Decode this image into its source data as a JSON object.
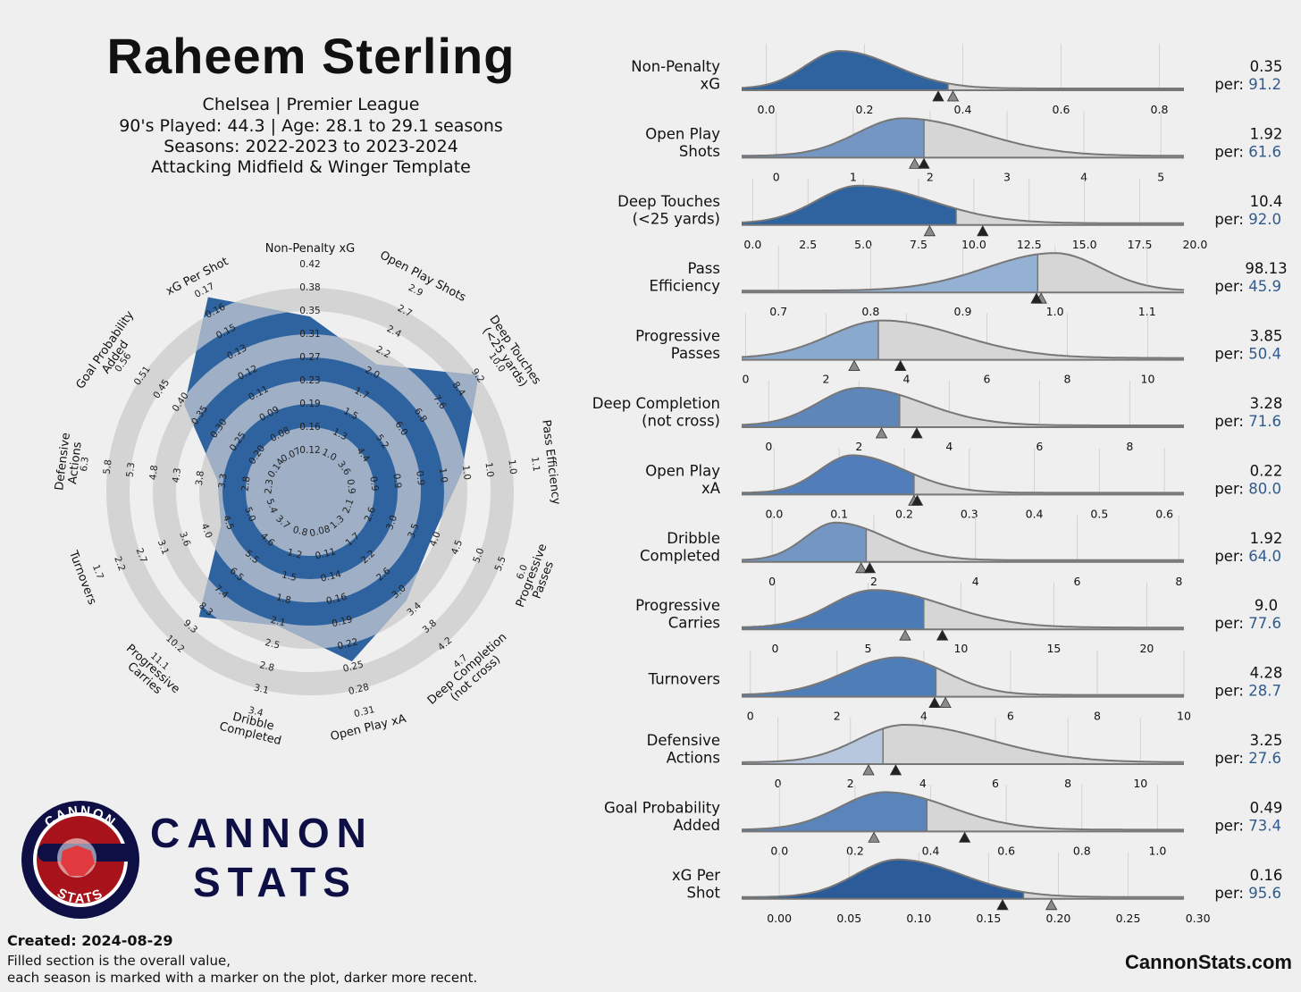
{
  "header": {
    "title": "Raheem Sterling",
    "line1": "Chelsea | Premier League",
    "line2": "90's Played: 44.3 | Age: 28.1 to 29.1 seasons",
    "line3": "Seasons: 2022-2023 to 2023-2024",
    "line4": "Attacking Midfield & Winger Template"
  },
  "brand": {
    "name1": "CANNON",
    "name2": "STATS",
    "badge_top": "CANNON",
    "badge_bottom": "STATS",
    "site": "CannonStats.com"
  },
  "footer": {
    "created": "Created: 2024-08-29",
    "note1": "Filled section is the overall value,",
    "note2": "each season is marked with a marker on the plot, darker more recent."
  },
  "colors": {
    "accent": "#2f63a0",
    "ring": "#d4d4d4",
    "curve_fill": "#d6d6d6",
    "curve_line": "#777777",
    "brand": "#0d0f45",
    "badge_red": "#a8121a"
  },
  "chart_data": [
    {
      "type": "radar",
      "axes": [
        {
          "label": "Non-Penalty xG",
          "ticks": [
            "0.12",
            "0.16",
            "0.19",
            "0.23",
            "0.27",
            "0.31",
            "0.35",
            "0.38",
            "0.42"
          ],
          "fill": 0.72
        },
        {
          "label": "Open Play Shots",
          "ticks": [
            "1.0",
            "1.3",
            "1.5",
            "1.7",
            "2.0",
            "2.2",
            "2.4",
            "2.7",
            "2.9"
          ],
          "fill": 0.55
        },
        {
          "label": "Deep Touches (<25 yards)",
          "ticks": [
            "3.6",
            "4.4",
            "5.2",
            "6.0",
            "6.8",
            "7.6",
            "8.4",
            "9.2",
            "10.0"
          ],
          "fill": 0.88
        },
        {
          "label": "Pass Efficiency",
          "ticks": [
            "0.9",
            "0.9",
            "0.9",
            "0.9",
            "1.0",
            "1.0",
            "1.0",
            "1.0",
            "1.1"
          ],
          "fill": 0.6
        },
        {
          "label": "Progressive Passes",
          "ticks": [
            "2.1",
            "2.6",
            "3.0",
            "3.5",
            "4.0",
            "4.5",
            "5.0",
            "5.5",
            "6.0"
          ],
          "fill": 0.48
        },
        {
          "label": "Deep Completion (not cross)",
          "ticks": [
            "1.3",
            "1.7",
            "2.2",
            "2.6",
            "3.0",
            "3.4",
            "3.8",
            "4.2",
            "4.7"
          ],
          "fill": 0.56
        },
        {
          "label": "Open Play xA",
          "ticks": [
            "0.08",
            "0.11",
            "0.14",
            "0.16",
            "0.19",
            "0.22",
            "0.25",
            "0.28",
            "0.31"
          ],
          "fill": 0.72
        },
        {
          "label": "Dribble Completed",
          "ticks": [
            "0.8",
            "1.2",
            "1.5",
            "1.8",
            "2.1",
            "2.5",
            "2.8",
            "3.1",
            "3.4"
          ],
          "fill": 0.52
        },
        {
          "label": "Progressive Carries",
          "ticks": [
            "3.7",
            "4.6",
            "5.5",
            "6.5",
            "7.4",
            "8.3",
            "9.3",
            "10.2",
            "11.1"
          ],
          "fill": 0.68
        },
        {
          "label": "Turnovers",
          "ticks": [
            "5.4",
            "5.0",
            "4.5",
            "4.0",
            "3.6",
            "3.1",
            "2.7",
            "2.2",
            "1.7"
          ],
          "fill": 0.29
        },
        {
          "label": "Defensive Actions",
          "ticks": [
            "2.3",
            "2.8",
            "3.3",
            "3.8",
            "4.3",
            "4.8",
            "5.3",
            "5.8",
            "6.3"
          ],
          "fill": 0.28
        },
        {
          "label": "Goal Probability Added",
          "ticks": [
            "0.14",
            "0.20",
            "0.25",
            "0.30",
            "0.35",
            "0.40",
            "0.45",
            "0.51",
            "0.56"
          ],
          "fill": 0.6
        },
        {
          "label": "xG Per Shot",
          "ticks": [
            "0.07",
            "0.08",
            "0.09",
            "0.11",
            "0.12",
            "0.13",
            "0.15",
            "0.16",
            "0.17"
          ],
          "fill": 0.96
        }
      ]
    },
    {
      "type": "distribution",
      "metrics": [
        {
          "label": [
            "Non-Penalty",
            "xG"
          ],
          "value": "0.35",
          "percentile": "91.2",
          "ticks": [
            "0.0",
            "0.2",
            "0.4",
            "0.6",
            "0.8"
          ],
          "tickvals": [
            0,
            0.2,
            0.4,
            0.6,
            0.8
          ],
          "xmin": -0.05,
          "xmax": 0.85,
          "mode": 0.15,
          "sdl": 0.07,
          "sdr": 0.11,
          "overall": 0.37,
          "markers": [
            0.38,
            0.35
          ],
          "shade": "#2f63a0"
        },
        {
          "label": [
            "Open Play",
            "Shots"
          ],
          "value": "1.92",
          "percentile": "61.6",
          "ticks": [
            "0",
            "1",
            "2",
            "3",
            "4",
            "5"
          ],
          "tickvals": [
            0,
            1,
            2,
            3,
            4,
            5
          ],
          "xmin": -0.45,
          "xmax": 5.3,
          "mode": 1.65,
          "sdl": 0.6,
          "sdr": 1.0,
          "overall": 1.92,
          "markers": [
            1.8,
            1.92
          ],
          "shade": "#7496c2"
        },
        {
          "label": [
            "Deep Touches",
            "(<25 yards)"
          ],
          "value": "10.4",
          "percentile": "92.0",
          "ticks": [
            "0.0",
            "2.5",
            "5.0",
            "7.5",
            "10.0",
            "12.5",
            "15.0",
            "17.5",
            "20.0"
          ],
          "tickvals": [
            0,
            2.5,
            5,
            7.5,
            10,
            12.5,
            15,
            17.5,
            20
          ],
          "xmin": -0.5,
          "xmax": 19.5,
          "mode": 4.8,
          "sdl": 1.9,
          "sdr": 3.2,
          "overall": 9.2,
          "markers": [
            8.0,
            10.4
          ],
          "shade": "#2f63a0"
        },
        {
          "label": [
            "Pass",
            "Efficiency"
          ],
          "value": "98.13",
          "percentile": "45.9",
          "ticks": [
            "0.7",
            "0.8",
            "0.9",
            "1.0",
            "1.1"
          ],
          "tickvals": [
            0.7,
            0.8,
            0.9,
            1.0,
            1.1
          ],
          "xmin": 0.66,
          "xmax": 1.14,
          "mode": 1.0,
          "sdl": 0.075,
          "sdr": 0.05,
          "overall": 0.9813,
          "markers": [
            0.985,
            0.98
          ],
          "shade": "#94b0d2"
        },
        {
          "label": [
            "Progressive",
            "Passes"
          ],
          "value": "3.85",
          "percentile": "50.4",
          "ticks": [
            "0",
            "2",
            "4",
            "6",
            "8",
            "10"
          ],
          "tickvals": [
            0,
            2,
            4,
            6,
            8,
            10
          ],
          "xmin": -0.1,
          "xmax": 10.9,
          "mode": 3.4,
          "sdl": 1.3,
          "sdr": 1.9,
          "overall": 3.3,
          "markers": [
            2.7,
            3.85
          ],
          "shade": "#8aa9cf"
        },
        {
          "label": [
            "Deep Completion",
            "(not cross)"
          ],
          "value": "3.28",
          "percentile": "71.6",
          "ticks": [
            "0",
            "2",
            "4",
            "6",
            "8"
          ],
          "tickvals": [
            0,
            2,
            4,
            6,
            8
          ],
          "xmin": -0.6,
          "xmax": 9.2,
          "mode": 2.0,
          "sdl": 0.9,
          "sdr": 1.4,
          "overall": 2.9,
          "markers": [
            2.5,
            3.28
          ],
          "shade": "#5e86b9"
        },
        {
          "label": [
            "Open Play",
            "xA"
          ],
          "value": "0.22",
          "percentile": "80.0",
          "ticks": [
            "0.0",
            "0.1",
            "0.2",
            "0.3",
            "0.4",
            "0.5",
            "0.6"
          ],
          "tickvals": [
            0,
            0.1,
            0.2,
            0.3,
            0.4,
            0.5,
            0.6
          ],
          "xmin": -0.05,
          "xmax": 0.63,
          "mode": 0.12,
          "sdl": 0.05,
          "sdr": 0.08,
          "overall": 0.215,
          "markers": [
            0.215,
            0.22
          ],
          "shade": "#527dbb"
        },
        {
          "label": [
            "Dribble",
            "Completed"
          ],
          "value": "1.92",
          "percentile": "64.0",
          "ticks": [
            "0",
            "2",
            "4",
            "6",
            "8"
          ],
          "tickvals": [
            0,
            2,
            4,
            6,
            8
          ],
          "xmin": -0.6,
          "xmax": 8.1,
          "mode": 1.25,
          "sdl": 0.6,
          "sdr": 1.0,
          "overall": 1.85,
          "markers": [
            1.75,
            1.92
          ],
          "shade": "#7496c2"
        },
        {
          "label": [
            "Progressive",
            "Carries"
          ],
          "value": "9.0",
          "percentile": "77.6",
          "ticks": [
            "0",
            "5",
            "10",
            "15",
            "20"
          ],
          "tickvals": [
            0,
            5,
            10,
            15,
            20
          ],
          "xmin": -1.8,
          "xmax": 22.0,
          "mode": 5.3,
          "sdl": 2.3,
          "sdr": 3.8,
          "overall": 8.0,
          "markers": [
            7.0,
            9.0
          ],
          "shade": "#4c7ab5"
        },
        {
          "label": [
            "Turnovers"
          ],
          "value": "4.28",
          "percentile": "28.7",
          "ticks": [
            "0",
            "2",
            "4",
            "6",
            "8",
            "10"
          ],
          "tickvals": [
            0,
            2,
            4,
            6,
            8,
            10
          ],
          "xmin": -0.2,
          "xmax": 10.0,
          "mode": 3.4,
          "sdl": 1.2,
          "sdr": 1.1,
          "overall": 4.28,
          "markers": [
            4.5,
            4.25
          ],
          "shade": "#4f7db8"
        },
        {
          "label": [
            "Defensive",
            "Actions"
          ],
          "value": "3.25",
          "percentile": "27.6",
          "ticks": [
            "0",
            "2",
            "4",
            "6",
            "8",
            "10"
          ],
          "tickvals": [
            0,
            2,
            4,
            6,
            8,
            10
          ],
          "xmin": -1.0,
          "xmax": 11.2,
          "mode": 3.5,
          "sdl": 1.3,
          "sdr": 2.3,
          "overall": 2.9,
          "markers": [
            2.5,
            3.25
          ],
          "shade": "#b7c8de"
        },
        {
          "label": [
            "Goal Probability",
            "Added"
          ],
          "value": "0.49",
          "percentile": "73.4",
          "ticks": [
            "0.0",
            "0.2",
            "0.4",
            "0.6",
            "0.8",
            "1.0"
          ],
          "tickvals": [
            0,
            0.2,
            0.4,
            0.6,
            0.8,
            1.0
          ],
          "xmin": -0.1,
          "xmax": 1.07,
          "mode": 0.28,
          "sdl": 0.12,
          "sdr": 0.17,
          "overall": 0.39,
          "markers": [
            0.25,
            0.49
          ],
          "shade": "#5a84ba"
        },
        {
          "label": [
            "xG Per",
            "Shot"
          ],
          "value": "0.16",
          "percentile": "95.6",
          "ticks": [
            "0.00",
            "0.05",
            "0.10",
            "0.15",
            "0.20",
            "0.25",
            "0.30"
          ],
          "tickvals": [
            0,
            0.05,
            0.1,
            0.15,
            0.2,
            0.25,
            0.3
          ],
          "xmin": -0.027,
          "xmax": 0.29,
          "mode": 0.085,
          "sdl": 0.03,
          "sdr": 0.045,
          "overall": 0.175,
          "markers": [
            0.195,
            0.16
          ],
          "shade": "#2b5b98"
        }
      ]
    }
  ]
}
